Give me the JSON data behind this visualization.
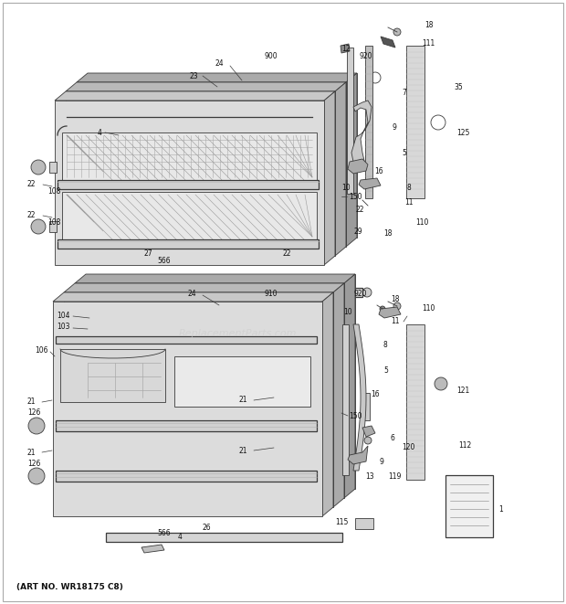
{
  "art_no": "(ART NO. WR18175 C8)",
  "bg_color": "#ffffff",
  "lc": "#3a3a3a",
  "tc": "#111111",
  "watermark": "ReplacementParts.com",
  "fig_width": 6.2,
  "fig_height": 6.61,
  "dpi": 100
}
